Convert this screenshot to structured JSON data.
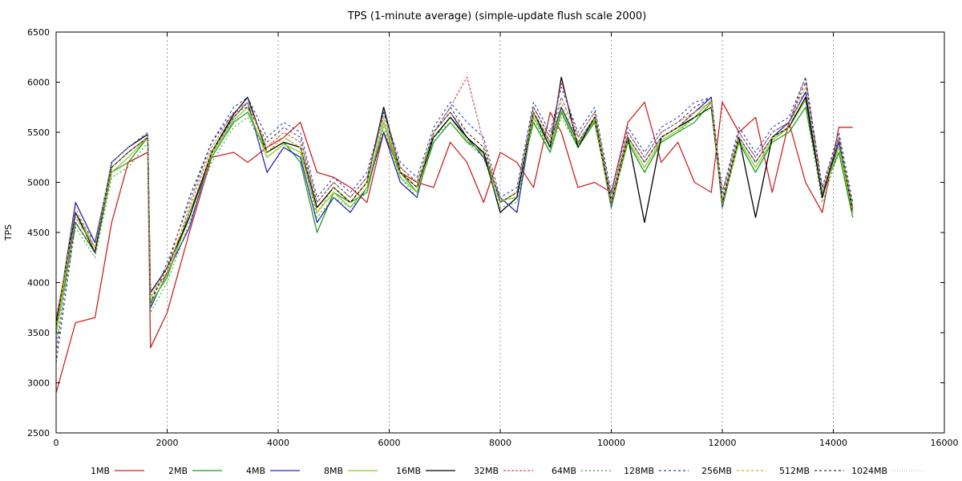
{
  "chart_data": {
    "type": "line",
    "title": "TPS (1-minute average) (simple-update flush scale 2000)",
    "xlabel": "",
    "ylabel": "TPS",
    "xlim": [
      0,
      16000
    ],
    "ylim": [
      2500,
      6500
    ],
    "x_ticks": [
      0,
      2000,
      4000,
      6000,
      8000,
      10000,
      12000,
      14000,
      16000
    ],
    "y_ticks": [
      2500,
      3000,
      3500,
      4000,
      4500,
      5000,
      5500,
      6000,
      6500
    ],
    "grid": "vertical-dashed",
    "legend_position": "bottom",
    "x": [
      0,
      350,
      700,
      1000,
      1300,
      1650,
      1700,
      2000,
      2400,
      2800,
      3200,
      3450,
      3800,
      4100,
      4400,
      4700,
      5000,
      5300,
      5600,
      5900,
      6200,
      6500,
      6800,
      7100,
      7400,
      7700,
      8000,
      8300,
      8600,
      8900,
      9100,
      9400,
      9700,
      10000,
      10300,
      10600,
      10900,
      11200,
      11500,
      11800,
      12000,
      12300,
      12600,
      12900,
      13200,
      13500,
      13800,
      14100,
      14350
    ],
    "series": [
      {
        "name": "1MB",
        "color": "#cc2222",
        "dash": "solid",
        "values": [
          2900,
          3600,
          3650,
          4600,
          5200,
          5300,
          3350,
          3700,
          4500,
          5250,
          5300,
          5200,
          5350,
          5450,
          5600,
          5100,
          5050,
          4950,
          4800,
          5500,
          5100,
          5000,
          4950,
          5400,
          5200,
          4800,
          5300,
          5200,
          4950,
          5700,
          5500,
          4950,
          5000,
          4900,
          5600,
          5800,
          5200,
          5400,
          5000,
          4900,
          5800,
          5500,
          5650,
          4900,
          5600,
          5000,
          4700,
          5550,
          5550
        ]
      },
      {
        "name": "2MB",
        "color": "#229922",
        "dash": "solid",
        "values": [
          3500,
          4600,
          4300,
          5100,
          5200,
          5450,
          3800,
          4050,
          4700,
          5250,
          5600,
          5700,
          5300,
          5400,
          5200,
          4500,
          4900,
          4800,
          4900,
          5600,
          5100,
          4900,
          5400,
          5600,
          5400,
          5300,
          4800,
          4900,
          5600,
          5300,
          5700,
          5350,
          5600,
          4800,
          5400,
          5100,
          5400,
          5500,
          5600,
          5800,
          4800,
          5400,
          5100,
          5400,
          5500,
          5750,
          4900,
          5300,
          4650
        ]
      },
      {
        "name": "4MB",
        "color": "#2222bb",
        "dash": "solid",
        "values": [
          3550,
          4800,
          4400,
          5150,
          5300,
          5450,
          3750,
          4100,
          4550,
          5300,
          5650,
          5800,
          5100,
          5350,
          5250,
          4600,
          4850,
          4700,
          4950,
          5500,
          5000,
          4850,
          5500,
          5700,
          5450,
          5250,
          4850,
          4700,
          5700,
          5400,
          5750,
          5400,
          5650,
          4750,
          5450,
          5200,
          5450,
          5550,
          5700,
          5850,
          4750,
          5450,
          5200,
          5450,
          5600,
          5900,
          4850,
          5400,
          4750
        ]
      },
      {
        "name": "8MB",
        "color": "#88cc22",
        "dash": "solid",
        "values": [
          3500,
          4700,
          4350,
          5100,
          5250,
          5450,
          3780,
          4080,
          4650,
          5280,
          5620,
          5750,
          5250,
          5380,
          5300,
          4700,
          4900,
          4750,
          4950,
          5600,
          5050,
          4900,
          5450,
          5650,
          5420,
          5280,
          4820,
          4850,
          5650,
          5350,
          5720,
          5380,
          5620,
          4780,
          5420,
          5150,
          5420,
          5520,
          5650,
          5820,
          4780,
          5420,
          5150,
          5420,
          5550,
          5820,
          4870,
          5350,
          4700
        ]
      },
      {
        "name": "16MB",
        "color": "#000000",
        "dash": "solid",
        "values": [
          3600,
          4700,
          4300,
          5200,
          5350,
          5480,
          3900,
          4150,
          4650,
          5300,
          5680,
          5850,
          5300,
          5400,
          5350,
          4750,
          4950,
          4800,
          5000,
          5750,
          5100,
          4950,
          5450,
          5650,
          5450,
          5300,
          4700,
          4850,
          5700,
          5350,
          6050,
          5350,
          5650,
          4800,
          5450,
          4600,
          5450,
          5550,
          5650,
          5750,
          4800,
          5450,
          4650,
          5450,
          5550,
          5850,
          4850,
          5450,
          4700
        ]
      },
      {
        "name": "32MB",
        "color": "#dd4444",
        "dash": "3,2",
        "values": [
          3650,
          4650,
          4350,
          5150,
          5300,
          5450,
          3850,
          4100,
          4750,
          5350,
          5700,
          5800,
          5350,
          5500,
          5400,
          4800,
          5000,
          4850,
          5050,
          5650,
          5150,
          5000,
          5500,
          5750,
          6050,
          5400,
          4800,
          4900,
          5750,
          5450,
          6000,
          5450,
          5700,
          4850,
          5500,
          5250,
          5500,
          5600,
          5700,
          5800,
          4900,
          5500,
          5250,
          5500,
          5600,
          6050,
          4950,
          5450,
          4750
        ]
      },
      {
        "name": "64MB",
        "color": "#22aa22",
        "dash": "2,3",
        "values": [
          3400,
          4550,
          4250,
          5050,
          5150,
          5400,
          3700,
          4000,
          4600,
          5200,
          5550,
          5650,
          5300,
          5450,
          5350,
          4650,
          4850,
          4750,
          4900,
          5550,
          5050,
          4850,
          5450,
          5600,
          5400,
          5250,
          4750,
          4800,
          5650,
          5300,
          5650,
          5350,
          5600,
          4750,
          5400,
          5100,
          5400,
          5500,
          5650,
          5750,
          4750,
          5400,
          5100,
          5400,
          5500,
          5750,
          4800,
          5300,
          4650
        ]
      },
      {
        "name": "128MB",
        "color": "#2244cc",
        "dash": "3,3",
        "values": [
          3300,
          4700,
          4400,
          5200,
          5350,
          5500,
          3800,
          4200,
          4800,
          5400,
          5750,
          5850,
          5450,
          5600,
          5500,
          4850,
          5050,
          4900,
          5100,
          5700,
          5200,
          5050,
          5550,
          5800,
          5600,
          5450,
          4850,
          4950,
          5800,
          5500,
          5950,
          5500,
          5750,
          4900,
          5550,
          5300,
          5550,
          5650,
          5800,
          5850,
          4900,
          5550,
          5300,
          5550,
          5650,
          6050,
          4950,
          5500,
          4800
        ]
      },
      {
        "name": "256MB",
        "color": "#ddaa00",
        "dash": "3,3",
        "values": [
          3550,
          4750,
          4350,
          5150,
          5300,
          5450,
          3850,
          4150,
          4700,
          5300,
          5650,
          5800,
          5300,
          5450,
          5350,
          4700,
          4950,
          4800,
          5000,
          5650,
          5100,
          4950,
          5500,
          5700,
          5500,
          5350,
          4800,
          4900,
          5700,
          5400,
          5800,
          5400,
          5650,
          4800,
          5450,
          5200,
          5450,
          5550,
          5700,
          5800,
          4800,
          5450,
          5200,
          5450,
          5550,
          5950,
          4900,
          5450,
          4700
        ]
      },
      {
        "name": "512MB",
        "color": "#333333",
        "dash": "3,3",
        "values": [
          3200,
          4600,
          4300,
          5150,
          5300,
          5450,
          3800,
          4150,
          4850,
          5400,
          5700,
          5750,
          5400,
          5550,
          5450,
          4800,
          5000,
          4850,
          5050,
          5700,
          5150,
          5000,
          5500,
          5750,
          5500,
          5350,
          4800,
          4900,
          5750,
          5450,
          5850,
          5450,
          5700,
          4850,
          5500,
          5250,
          5500,
          5600,
          5750,
          5850,
          4850,
          5500,
          5250,
          5500,
          5600,
          6000,
          4900,
          5450,
          4750
        ]
      },
      {
        "name": "1024MB",
        "color": "#bbbbbb",
        "dash": "1,2",
        "values": [
          3350,
          4650,
          4350,
          5200,
          5350,
          5500,
          3850,
          4200,
          4800,
          5350,
          5700,
          5800,
          5350,
          5550,
          5450,
          4800,
          5000,
          4850,
          5050,
          5650,
          5150,
          5000,
          5500,
          5750,
          6100,
          5400,
          4850,
          4900,
          5700,
          5450,
          5850,
          5450,
          5700,
          4850,
          5500,
          5250,
          5500,
          5600,
          5700,
          5800,
          4850,
          5500,
          5250,
          5500,
          5600,
          5950,
          4900,
          5450,
          4750
        ]
      }
    ]
  }
}
